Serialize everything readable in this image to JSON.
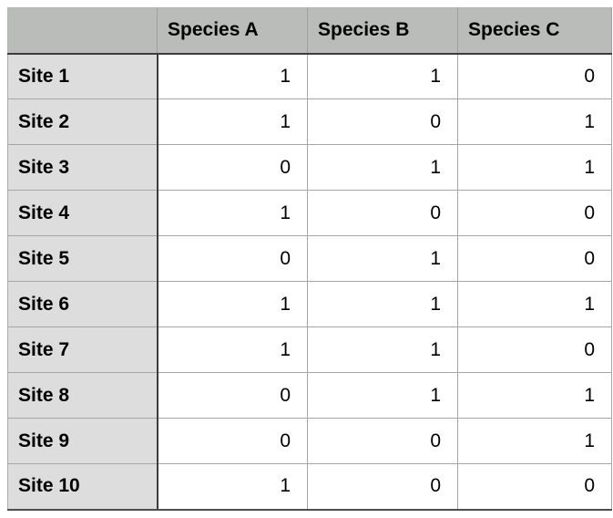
{
  "chart_data": {
    "type": "table",
    "title": "",
    "columns": [
      "",
      "Species A",
      "Species B",
      "Species C"
    ],
    "row_labels": [
      "Site 1",
      "Site 2",
      "Site 3",
      "Site 4",
      "Site 5",
      "Site 6",
      "Site 7",
      "Site 8",
      "Site 9",
      "Site 10"
    ],
    "rows": [
      [
        1,
        1,
        0
      ],
      [
        1,
        0,
        1
      ],
      [
        0,
        1,
        1
      ],
      [
        1,
        0,
        0
      ],
      [
        0,
        1,
        0
      ],
      [
        1,
        1,
        1
      ],
      [
        1,
        1,
        0
      ],
      [
        0,
        1,
        1
      ],
      [
        0,
        0,
        1
      ],
      [
        1,
        0,
        0
      ]
    ]
  },
  "colors": {
    "header_bg": "#b9bcb9",
    "row_label_bg": "#dcdddc",
    "cell_bg": "#ffffff",
    "inner_border": "#a6a6a6",
    "strong_border": "#3c3c3c",
    "bottom_border": "#4d4d4d",
    "text": "#000000"
  }
}
